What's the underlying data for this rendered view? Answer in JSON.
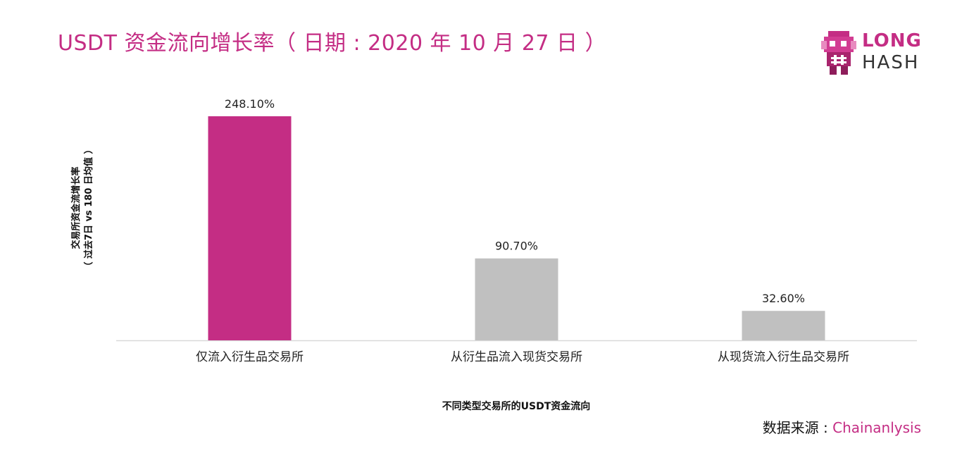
{
  "title": "USDT 资金流向增长率（ 日期 : 2020 年 10 月 27 日 ）",
  "logo": {
    "line1": "LONG",
    "line2": "HASH",
    "icon": "pixel-character-icon"
  },
  "source": {
    "label": "数据来源 : ",
    "value": "Chainanlysis"
  },
  "colors": {
    "accent": "#c42d84",
    "gray": "#c0c0c0"
  },
  "chart_data": {
    "type": "bar",
    "title": "USDT 资金流向增长率（ 日期 : 2020 年 10 月 27 日 ）",
    "xlabel": "不同类型交易所的USDT资金流向",
    "ylabel_line1": "交易所资金流增长率",
    "ylabel_line2": "（ 过去7日 vs 180 日均值 ）",
    "categories": [
      "仅流入衍生品交易所",
      "从衍生品流入现货交易所",
      "从现货流入衍生品交易所"
    ],
    "values": [
      248.1,
      90.7,
      32.6
    ],
    "value_labels": [
      "248.10%",
      "90.70%",
      "32.60%"
    ],
    "bar_colors": [
      "#c42d84",
      "#c0c0c0",
      "#c0c0c0"
    ],
    "ylim": [
      0,
      260
    ],
    "grid": false,
    "legend": "none"
  }
}
